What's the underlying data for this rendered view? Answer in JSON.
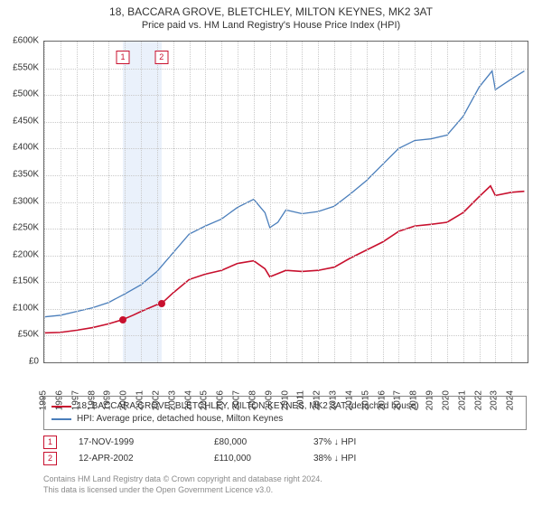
{
  "title": {
    "main": "18, BACCARA GROVE, BLETCHLEY, MILTON KEYNES, MK2 3AT",
    "sub": "Price paid vs. HM Land Registry's House Price Index (HPI)",
    "fontsize_main": 12,
    "fontsize_sub": 11
  },
  "chart": {
    "type": "line",
    "background_color": "#ffffff",
    "grid_color": "#c9c9c9",
    "border_color": "#666666",
    "ylim": [
      0,
      600000
    ],
    "ytick_step": 50000,
    "yticks": [
      "£0",
      "£50K",
      "£100K",
      "£150K",
      "£200K",
      "£250K",
      "£300K",
      "£350K",
      "£400K",
      "£450K",
      "£500K",
      "£550K",
      "£600K"
    ],
    "xlim": [
      1995,
      2025
    ],
    "xticks": [
      1995,
      1996,
      1997,
      1998,
      1999,
      2000,
      2001,
      2002,
      2003,
      2004,
      2005,
      2006,
      2007,
      2008,
      2009,
      2010,
      2011,
      2012,
      2013,
      2014,
      2015,
      2016,
      2017,
      2018,
      2019,
      2020,
      2021,
      2022,
      2023,
      2024
    ],
    "label_fontsize": 10,
    "highlight_band": {
      "from": 1999.88,
      "to": 2002.28,
      "color": "#eaf1fb"
    },
    "series": [
      {
        "name": "property",
        "label": "18, BACCARA GROVE, BLETCHLEY, MILTON KEYNES, MK2 3AT (detached house)",
        "color": "#c8102e",
        "line_width": 1.6,
        "data": [
          [
            1995,
            55000
          ],
          [
            1996,
            56000
          ],
          [
            1997,
            60000
          ],
          [
            1998,
            65000
          ],
          [
            1999,
            72000
          ],
          [
            1999.88,
            80000
          ],
          [
            2000.5,
            88000
          ],
          [
            2001,
            95000
          ],
          [
            2002,
            108000
          ],
          [
            2002.28,
            110000
          ],
          [
            2003,
            130000
          ],
          [
            2004,
            155000
          ],
          [
            2005,
            165000
          ],
          [
            2006,
            172000
          ],
          [
            2007,
            185000
          ],
          [
            2008,
            190000
          ],
          [
            2008.7,
            175000
          ],
          [
            2009,
            160000
          ],
          [
            2010,
            172000
          ],
          [
            2011,
            170000
          ],
          [
            2012,
            172000
          ],
          [
            2013,
            178000
          ],
          [
            2014,
            195000
          ],
          [
            2015,
            210000
          ],
          [
            2016,
            225000
          ],
          [
            2017,
            245000
          ],
          [
            2018,
            255000
          ],
          [
            2019,
            258000
          ],
          [
            2020,
            262000
          ],
          [
            2021,
            280000
          ],
          [
            2022,
            310000
          ],
          [
            2022.7,
            330000
          ],
          [
            2023,
            312000
          ],
          [
            2024,
            318000
          ],
          [
            2024.8,
            320000
          ]
        ]
      },
      {
        "name": "hpi",
        "label": "HPI: Average price, detached house, Milton Keynes",
        "color": "#4a7ebb",
        "line_width": 1.3,
        "data": [
          [
            1995,
            85000
          ],
          [
            1996,
            88000
          ],
          [
            1997,
            95000
          ],
          [
            1998,
            102000
          ],
          [
            1999,
            112000
          ],
          [
            2000,
            128000
          ],
          [
            2001,
            145000
          ],
          [
            2002,
            170000
          ],
          [
            2003,
            205000
          ],
          [
            2004,
            240000
          ],
          [
            2005,
            255000
          ],
          [
            2006,
            268000
          ],
          [
            2007,
            290000
          ],
          [
            2008,
            305000
          ],
          [
            2008.7,
            280000
          ],
          [
            2009,
            252000
          ],
          [
            2009.5,
            262000
          ],
          [
            2010,
            285000
          ],
          [
            2011,
            278000
          ],
          [
            2012,
            282000
          ],
          [
            2013,
            292000
          ],
          [
            2014,
            315000
          ],
          [
            2015,
            340000
          ],
          [
            2016,
            370000
          ],
          [
            2017,
            400000
          ],
          [
            2018,
            415000
          ],
          [
            2019,
            418000
          ],
          [
            2020,
            425000
          ],
          [
            2021,
            460000
          ],
          [
            2022,
            515000
          ],
          [
            2022.8,
            545000
          ],
          [
            2023,
            510000
          ],
          [
            2024,
            530000
          ],
          [
            2024.8,
            545000
          ]
        ]
      }
    ],
    "sale_markers": [
      {
        "n": "1",
        "x": 1999.88,
        "y": 80000,
        "box_top": 10,
        "color": "#c8102e"
      },
      {
        "n": "2",
        "x": 2002.28,
        "y": 110000,
        "box_top": 10,
        "color": "#c8102e"
      }
    ]
  },
  "legend": {
    "border_color": "#888888",
    "items": [
      {
        "color": "#c8102e",
        "text": "18, BACCARA GROVE, BLETCHLEY, MILTON KEYNES, MK2 3AT (detached house)"
      },
      {
        "color": "#4a7ebb",
        "text": "HPI: Average price, detached house, Milton Keynes"
      }
    ]
  },
  "sales": [
    {
      "n": "1",
      "color": "#c8102e",
      "date": "17-NOV-1999",
      "price": "£80,000",
      "pct": "37% ↓ HPI"
    },
    {
      "n": "2",
      "color": "#c8102e",
      "date": "12-APR-2002",
      "price": "£110,000",
      "pct": "38% ↓ HPI"
    }
  ],
  "footer": {
    "line1": "Contains HM Land Registry data © Crown copyright and database right 2024.",
    "line2": "This data is licensed under the Open Government Licence v3.0.",
    "color": "#8a8a8a"
  }
}
